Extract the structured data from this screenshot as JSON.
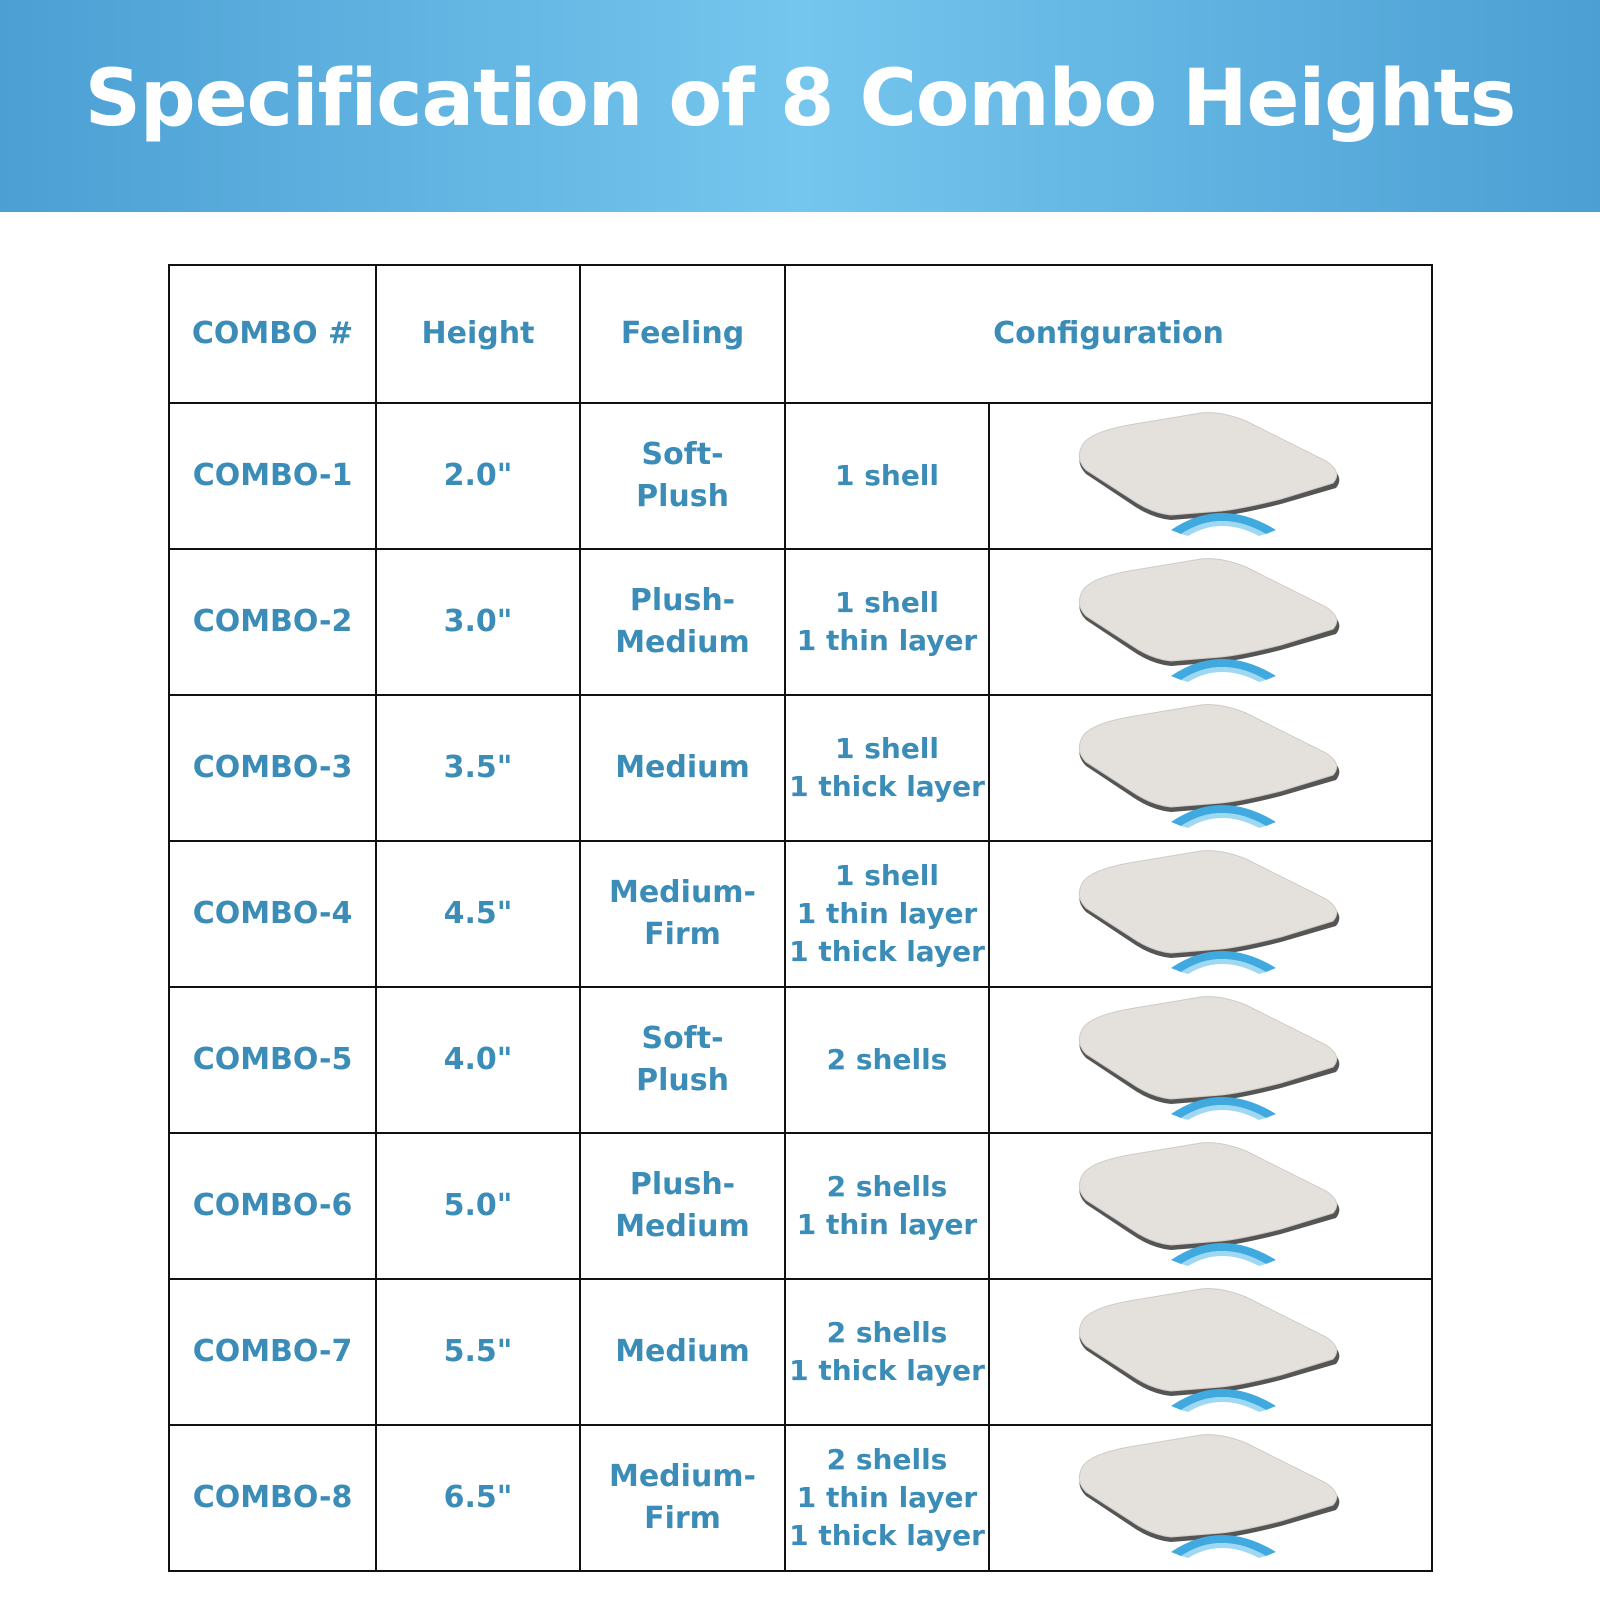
{
  "header": {
    "title": "Specification of 8 Combo Heights"
  },
  "table": {
    "columns": [
      "COMBO #",
      "Height",
      "Feeling",
      "Configuration"
    ],
    "rows": [
      {
        "combo": "COMBO-1",
        "height": "2.0\"",
        "feeling": [
          "Soft-",
          "Plush"
        ],
        "configuration": [
          "1 shell"
        ]
      },
      {
        "combo": "COMBO-2",
        "height": "3.0\"",
        "feeling": [
          "Plush-",
          "Medium"
        ],
        "configuration": [
          "1 shell",
          "1 thin layer"
        ]
      },
      {
        "combo": "COMBO-3",
        "height": "3.5\"",
        "feeling": [
          "Medium"
        ],
        "configuration": [
          "1 shell",
          "1 thick layer"
        ]
      },
      {
        "combo": "COMBO-4",
        "height": "4.5\"",
        "feeling": [
          "Medium-",
          "Firm"
        ],
        "configuration": [
          "1 shell",
          "1 thin layer",
          "1 thick layer"
        ]
      },
      {
        "combo": "COMBO-5",
        "height": "4.0\"",
        "feeling": [
          "Soft-",
          "Plush"
        ],
        "configuration": [
          "2 shells"
        ]
      },
      {
        "combo": "COMBO-6",
        "height": "5.0\"",
        "feeling": [
          "Plush-",
          "Medium"
        ],
        "configuration": [
          "2 shells",
          "1 thin layer"
        ]
      },
      {
        "combo": "COMBO-7",
        "height": "5.5\"",
        "feeling": [
          "Medium"
        ],
        "configuration": [
          "2 shells",
          "1 thick layer"
        ]
      },
      {
        "combo": "COMBO-8",
        "height": "6.5\"",
        "feeling": [
          "Medium-",
          "Firm"
        ],
        "configuration": [
          "2 shells",
          "1 thin layer",
          "1 thick layer"
        ]
      }
    ]
  }
}
